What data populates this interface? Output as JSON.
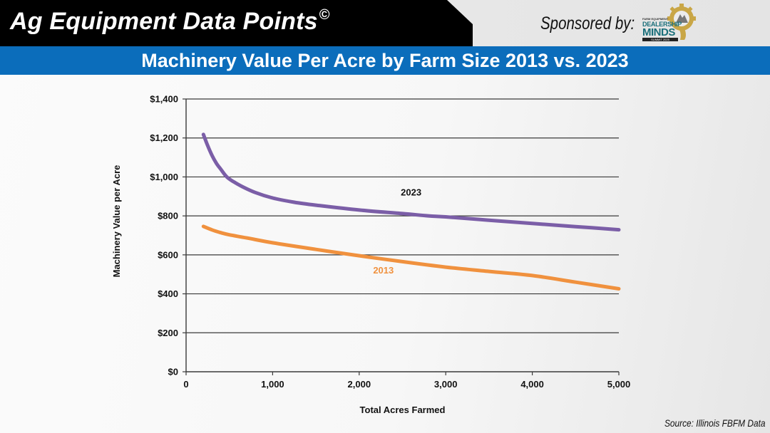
{
  "header": {
    "brand_title": "Ag Equipment Data Points",
    "brand_mark": "©",
    "sponsor_label": "Sponsored by:",
    "sponsor_logo": {
      "small_text": "FARM EQUIPMENT",
      "line1": "DEALERSHIP",
      "line2": "MINDS",
      "line3": "SUMMIT 2025"
    },
    "slide_title": "Machinery Value Per Acre by Farm Size 2013 vs. 2023"
  },
  "footer": {
    "source": "Source: Illinois FBFM Data"
  },
  "colors": {
    "banner": "#000000",
    "title_band": "#0b6dbb",
    "series_2023": "#7b5ea7",
    "series_2013": "#f0913e",
    "label_2023": "#111111",
    "label_2013": "#f0913e"
  },
  "chart_data": {
    "type": "line",
    "title": "Machinery Value Per Acre by Farm Size 2013 vs. 2023",
    "xlabel": "Total Acres Farmed",
    "ylabel": "Machinery Value per Acre",
    "xlim": [
      0,
      5000
    ],
    "ylim": [
      0,
      1400
    ],
    "x_ticks": [
      0,
      1000,
      2000,
      3000,
      4000,
      5000
    ],
    "x_tick_labels": [
      "0",
      "1,000",
      "2,000",
      "3,000",
      "4,000",
      "5,000"
    ],
    "y_ticks": [
      0,
      200,
      400,
      600,
      800,
      1000,
      1200,
      1400
    ],
    "y_tick_labels": [
      "$0",
      "$200",
      "$400",
      "$600",
      "$800",
      "$1,000",
      "$1,200",
      "$1,400"
    ],
    "grid": true,
    "legend": "inline labels",
    "series": [
      {
        "name": "2023",
        "x": [
          200,
          250,
          300,
          350,
          400,
          470,
          550,
          650,
          800,
          1000,
          1250,
          1500,
          2000,
          2500,
          2800,
          3000,
          3500,
          4000,
          4500,
          5000
        ],
        "values": [
          1218,
          1160,
          1110,
          1070,
          1040,
          1000,
          975,
          950,
          920,
          892,
          870,
          855,
          830,
          812,
          800,
          795,
          778,
          761,
          745,
          729
        ]
      },
      {
        "name": "2013",
        "x": [
          200,
          300,
          400,
          500,
          700,
          1000,
          1500,
          1930,
          2500,
          3000,
          3500,
          4000,
          4500,
          5000
        ],
        "values": [
          746,
          728,
          714,
          703,
          687,
          662,
          628,
          600,
          565,
          537,
          515,
          494,
          460,
          426
        ]
      }
    ],
    "annotations": [
      {
        "text": "2023",
        "x": 2600,
        "y": 905,
        "series": "2023"
      },
      {
        "text": "2013",
        "x": 2280,
        "y": 505,
        "series": "2013"
      }
    ]
  }
}
